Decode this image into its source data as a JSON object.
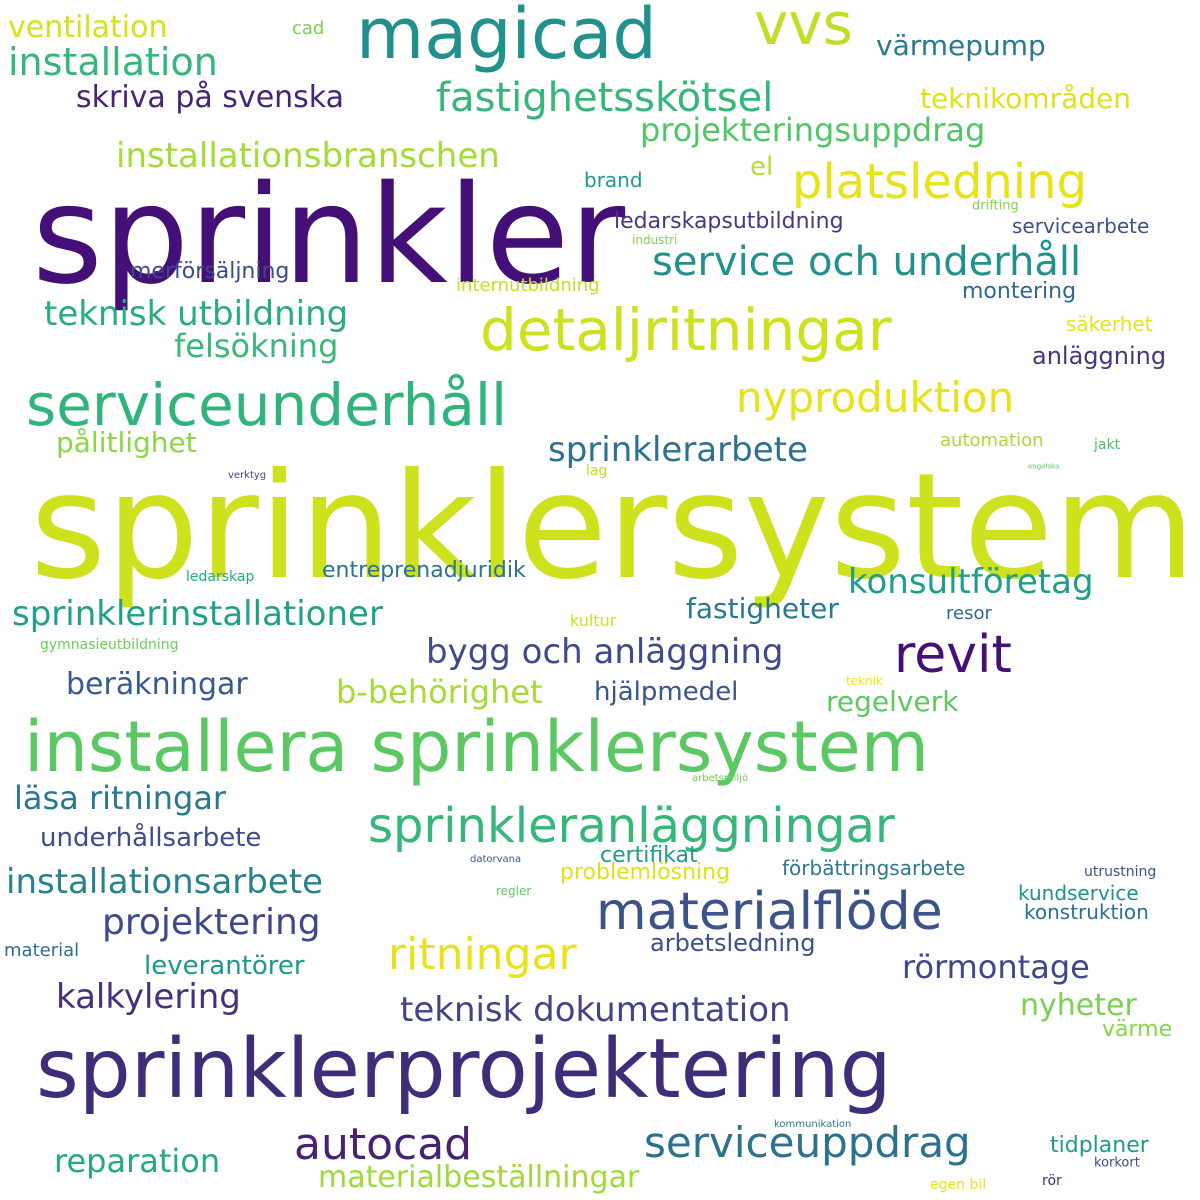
{
  "words": [
    {
      "text": "sprinklersystem",
      "color": "#cde11d"
    },
    {
      "text": "sprinkler",
      "color": "#440f76"
    },
    {
      "text": "installera sprinklersystem",
      "color": "#5cc863"
    },
    {
      "text": "sprinklerprojektering",
      "color": "#3f2d7a"
    },
    {
      "text": "magicad",
      "color": "#21918c"
    },
    {
      "text": "vvs",
      "color": "#bddf26"
    },
    {
      "text": "detaljritningar",
      "color": "#cde11d"
    },
    {
      "text": "serviceunderhåll",
      "color": "#2fb47c"
    },
    {
      "text": "materialflöde",
      "color": "#3b528b"
    },
    {
      "text": "revit",
      "color": "#440f76"
    },
    {
      "text": "platsledning",
      "color": "#e6e419"
    },
    {
      "text": "sprinkleranläggningar",
      "color": "#35b779"
    },
    {
      "text": "fastighetsskötsel",
      "color": "#35b779"
    },
    {
      "text": "service och underhåll",
      "color": "#21918c"
    },
    {
      "text": "nyproduktion",
      "color": "#e6e419"
    },
    {
      "text": "autocad",
      "color": "#482173"
    },
    {
      "text": "serviceuppdrag",
      "color": "#2c728e"
    },
    {
      "text": "ritningar",
      "color": "#e6e419"
    },
    {
      "text": "installation",
      "color": "#35b779"
    },
    {
      "text": "installationsbranschen",
      "color": "#a5db36"
    },
    {
      "text": "teknisk utbildning",
      "color": "#27ad81"
    },
    {
      "text": "skriva på svenska",
      "color": "#482475"
    },
    {
      "text": "projekteringsuppdrag",
      "color": "#52c569"
    },
    {
      "text": "sprinklerinstallationer",
      "color": "#1fa088"
    },
    {
      "text": "bygg och anläggning",
      "color": "#3e4a89"
    },
    {
      "text": "konsultföretag",
      "color": "#1f9e89"
    },
    {
      "text": "sprinklerarbete",
      "color": "#2c718e"
    },
    {
      "text": "installationsarbete",
      "color": "#26828e"
    },
    {
      "text": "projektering",
      "color": "#3e4989"
    },
    {
      "text": "teknisk dokumentation",
      "color": "#414487"
    },
    {
      "text": "ventilation",
      "color": "#d5e21a"
    },
    {
      "text": "värmepump",
      "color": "#297a8e"
    },
    {
      "text": "teknikområden",
      "color": "#dde318"
    },
    {
      "text": "felsökning",
      "color": "#38b977"
    },
    {
      "text": "b-behörighet",
      "color": "#a5db36"
    },
    {
      "text": "läsa ritningar",
      "color": "#2a788e"
    },
    {
      "text": "kalkylering",
      "color": "#46307e"
    },
    {
      "text": "rörmontage",
      "color": "#3f4889"
    },
    {
      "text": "reparation",
      "color": "#23a983"
    },
    {
      "text": "materialbeställningar",
      "color": "#a0da39"
    },
    {
      "text": "beräkningar",
      "color": "#365c8d"
    },
    {
      "text": "pålitlighet",
      "color": "#8bd646"
    },
    {
      "text": "fastigheter",
      "color": "#29798e"
    },
    {
      "text": "regelverk",
      "color": "#5ec962"
    },
    {
      "text": "nyheter",
      "color": "#7ad151"
    },
    {
      "text": "underhållsarbete",
      "color": "#3e4c8a"
    },
    {
      "text": "hjälpmedel",
      "color": "#39558c"
    },
    {
      "text": "leverantörer",
      "color": "#1f988b"
    },
    {
      "text": "arbetsledning",
      "color": "#3b518b"
    },
    {
      "text": "entreprenadjuridik",
      "color": "#2b758e"
    },
    {
      "text": "ledarskapsutbildning",
      "color": "#443a83"
    },
    {
      "text": "anläggning",
      "color": "#453781"
    },
    {
      "text": "montering",
      "color": "#31688e"
    },
    {
      "text": "merförsäljning",
      "color": "#3e4989"
    },
    {
      "text": "certifikat",
      "color": "#1f9a8a"
    },
    {
      "text": "förbättringsarbete",
      "color": "#2a788e"
    },
    {
      "text": "problemlösning",
      "color": "#dde318"
    },
    {
      "text": "kundservice",
      "color": "#20928c"
    },
    {
      "text": "konstruktion",
      "color": "#2c718e"
    },
    {
      "text": "tidplaner",
      "color": "#1e9b8a"
    },
    {
      "text": "värme",
      "color": "#86d549"
    },
    {
      "text": "el",
      "color": "#b5de2b"
    },
    {
      "text": "brand",
      "color": "#1f9a8a"
    },
    {
      "text": "servicearbete",
      "color": "#3b528b"
    },
    {
      "text": "säkerhet",
      "color": "#e5e419"
    },
    {
      "text": "automation",
      "color": "#a8db34"
    },
    {
      "text": "internutbildning",
      "color": "#c2df23"
    },
    {
      "text": "resor",
      "color": "#2e6d8e"
    },
    {
      "text": "kultur",
      "color": "#d0e11c"
    },
    {
      "text": "cad",
      "color": "#7ad151"
    },
    {
      "text": "ledarskap",
      "color": "#25ab82"
    },
    {
      "text": "gymnasieutbildning",
      "color": "#6ccd5a"
    },
    {
      "text": "material",
      "color": "#2d708e"
    },
    {
      "text": "drifting",
      "color": "#7fd34e"
    },
    {
      "text": "industri",
      "color": "#84d44b"
    },
    {
      "text": "jakt",
      "color": "#4ac16d"
    },
    {
      "text": "lag",
      "color": "#c0df25"
    },
    {
      "text": "verktyg",
      "color": "#414487"
    },
    {
      "text": "engelska",
      "color": "#5ac864"
    },
    {
      "text": "teknik",
      "color": "#f1e51d"
    },
    {
      "text": "arbetsmiljö",
      "color": "#6ece58"
    },
    {
      "text": "datorvana",
      "color": "#38598c"
    },
    {
      "text": "regler",
      "color": "#5ec962"
    },
    {
      "text": "utrustning",
      "color": "#39568c"
    },
    {
      "text": "kommunikation",
      "color": "#2a788e"
    },
    {
      "text": "korkort",
      "color": "#3e4a89"
    },
    {
      "text": "egen bil",
      "color": "#e7e419"
    },
    {
      "text": "rör",
      "color": "#472d7b"
    }
  ]
}
